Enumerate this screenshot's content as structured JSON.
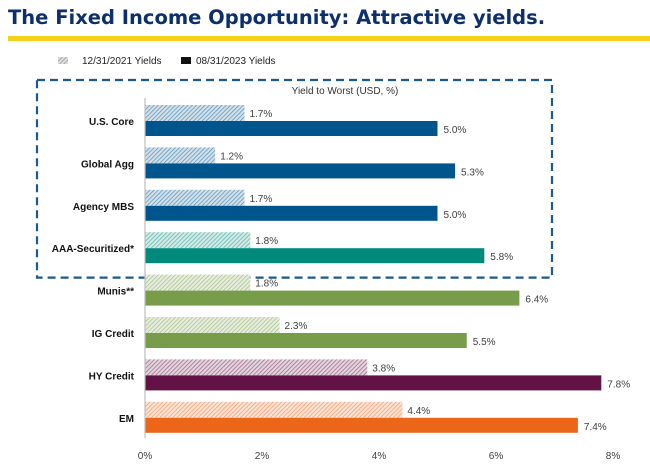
{
  "header": {
    "title": "The Fixed Income Opportunity: Attractive yields."
  },
  "chart_data": {
    "type": "bar",
    "orientation": "horizontal",
    "title": "Yield to Worst (USD, %)",
    "xlabel": "",
    "ylabel": "",
    "xlim": [
      0,
      8
    ],
    "xticks": [
      0,
      2,
      4,
      6,
      8
    ],
    "xtick_labels": [
      "0%",
      "2%",
      "4%",
      "6%",
      "8%"
    ],
    "grid": false,
    "legend_position": "top-left",
    "categories": [
      "U.S. Core",
      "Global Agg",
      "Agency MBS",
      "AAA-Securitized*",
      "Munis**",
      "IG Credit",
      "HY Credit",
      "EM"
    ],
    "series": [
      {
        "name": "12/31/2021 Yields",
        "style": "hatched",
        "values": [
          1.7,
          1.2,
          1.7,
          1.8,
          1.8,
          2.3,
          3.8,
          4.4
        ],
        "labels": [
          "1.7%",
          "1.2%",
          "1.7%",
          "1.8%",
          "1.8%",
          "2.3%",
          "3.8%",
          "4.4%"
        ]
      },
      {
        "name": "08/31/2023  Yields",
        "style": "solid",
        "values": [
          5.0,
          5.3,
          5.0,
          5.8,
          6.4,
          5.5,
          7.8,
          7.4
        ],
        "labels": [
          "5.0%",
          "5.3%",
          "5.0%",
          "5.8%",
          "6.4%",
          "5.5%",
          "7.8%",
          "7.4%"
        ]
      }
    ],
    "category_colors": [
      "#00558c",
      "#00558c",
      "#00558c",
      "#008a7c",
      "#789d4a",
      "#789d4a",
      "#621244",
      "#ec6619"
    ],
    "highlight_box": {
      "style": "dashed",
      "color": "#1a5a8c",
      "categories": [
        "U.S. Core",
        "Global Agg",
        "Agency MBS",
        "AAA-Securitized*"
      ]
    }
  },
  "colors": {
    "title": "#0d2f6b",
    "rule": "#f7d117"
  }
}
